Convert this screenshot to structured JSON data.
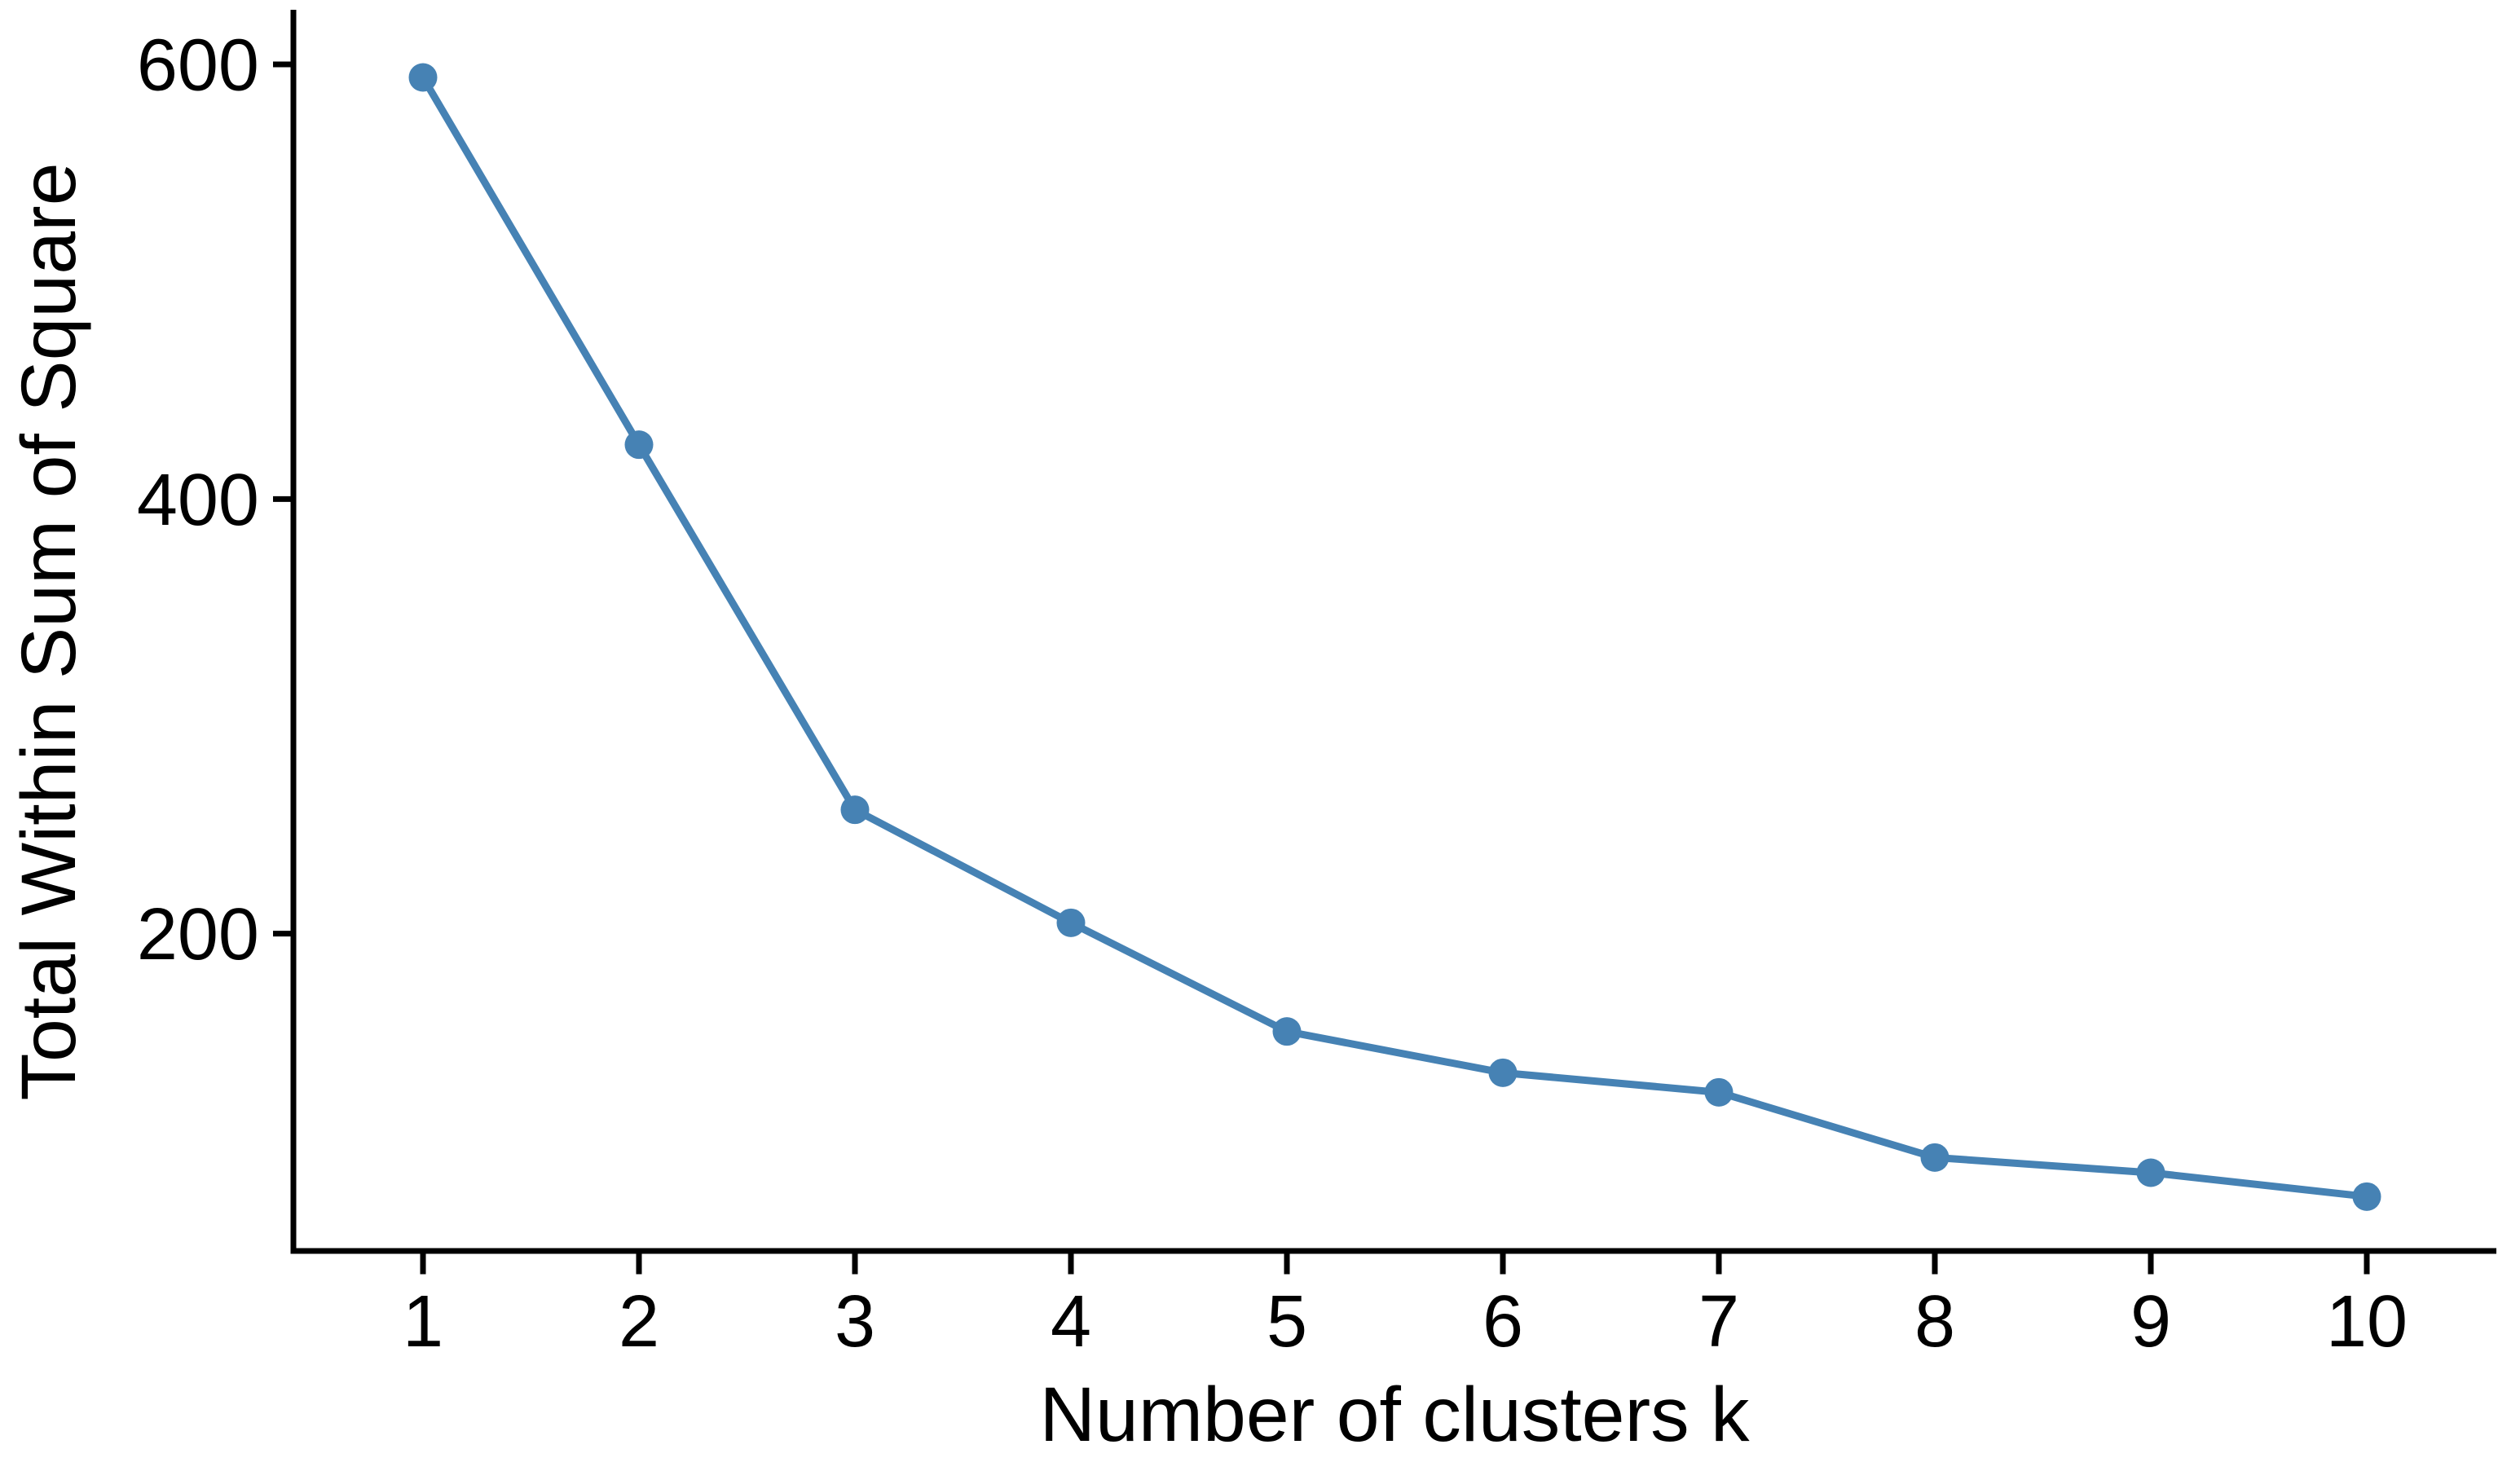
{
  "page": {
    "background": "#ffffff"
  },
  "chart_data": {
    "type": "line",
    "title": "",
    "xlabel": "Number of clusters k",
    "ylabel": "Total Within Sum of Square",
    "x": [
      1,
      2,
      3,
      4,
      5,
      6,
      7,
      8,
      9,
      10
    ],
    "xtick_labels": [
      "1",
      "2",
      "3",
      "4",
      "5",
      "6",
      "7",
      "8",
      "9",
      "10"
    ],
    "series": [
      {
        "name": "Total within sum of square",
        "values": [
          594,
          425,
          257,
          205,
          155,
          136,
          127,
          97,
          90,
          79
        ]
      }
    ],
    "ytick_values": [
      200,
      400,
      600
    ],
    "ytick_labels": [
      "200",
      "400",
      "600"
    ],
    "xlim": [
      0.4,
      10.6
    ],
    "ylim": [
      54,
      624
    ],
    "grid": false,
    "legend_position": "none",
    "marker": "filled-circle",
    "line_color": "#4682B4",
    "axis_color": "#000000",
    "text_color": "#000000"
  }
}
